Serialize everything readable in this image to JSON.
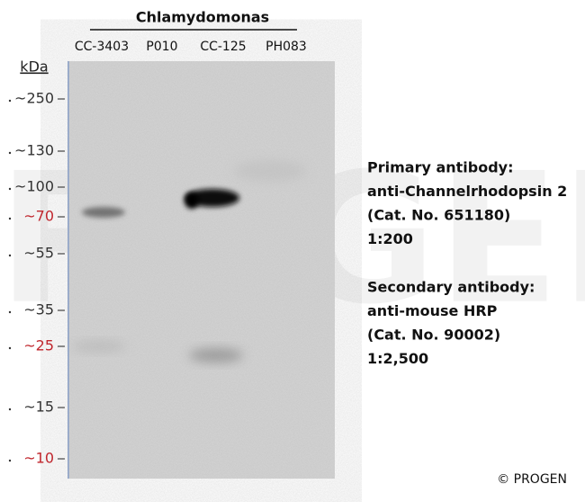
{
  "header": {
    "title": "Chlamydomonas",
    "lanes": [
      "CC-3403",
      "P010",
      "CC-125",
      "PH083"
    ]
  },
  "ladder": {
    "unit": "kDa",
    "markers": [
      {
        "label": "~250",
        "color": "#333333"
      },
      {
        "label": "~130",
        "color": "#333333"
      },
      {
        "label": "~100",
        "color": "#333333"
      },
      {
        "label": "~70",
        "color": "#c0262d"
      },
      {
        "label": "~55",
        "color": "#333333"
      },
      {
        "label": "~35",
        "color": "#333333"
      },
      {
        "label": "~25",
        "color": "#c0262d"
      },
      {
        "label": "~15",
        "color": "#333333"
      },
      {
        "label": "~10",
        "color": "#c0262d"
      }
    ]
  },
  "annotation": {
    "primary": [
      "Primary antibody:",
      "anti-Channelrhodopsin 2",
      "(Cat. No. 651180)",
      "1:200"
    ],
    "secondary": [
      "Secondary antibody:",
      "anti-mouse HRP",
      "(Cat. No. 90002)",
      "1:2,500"
    ]
  },
  "watermark": "PROGEN",
  "copyright": "© PROGEN"
}
